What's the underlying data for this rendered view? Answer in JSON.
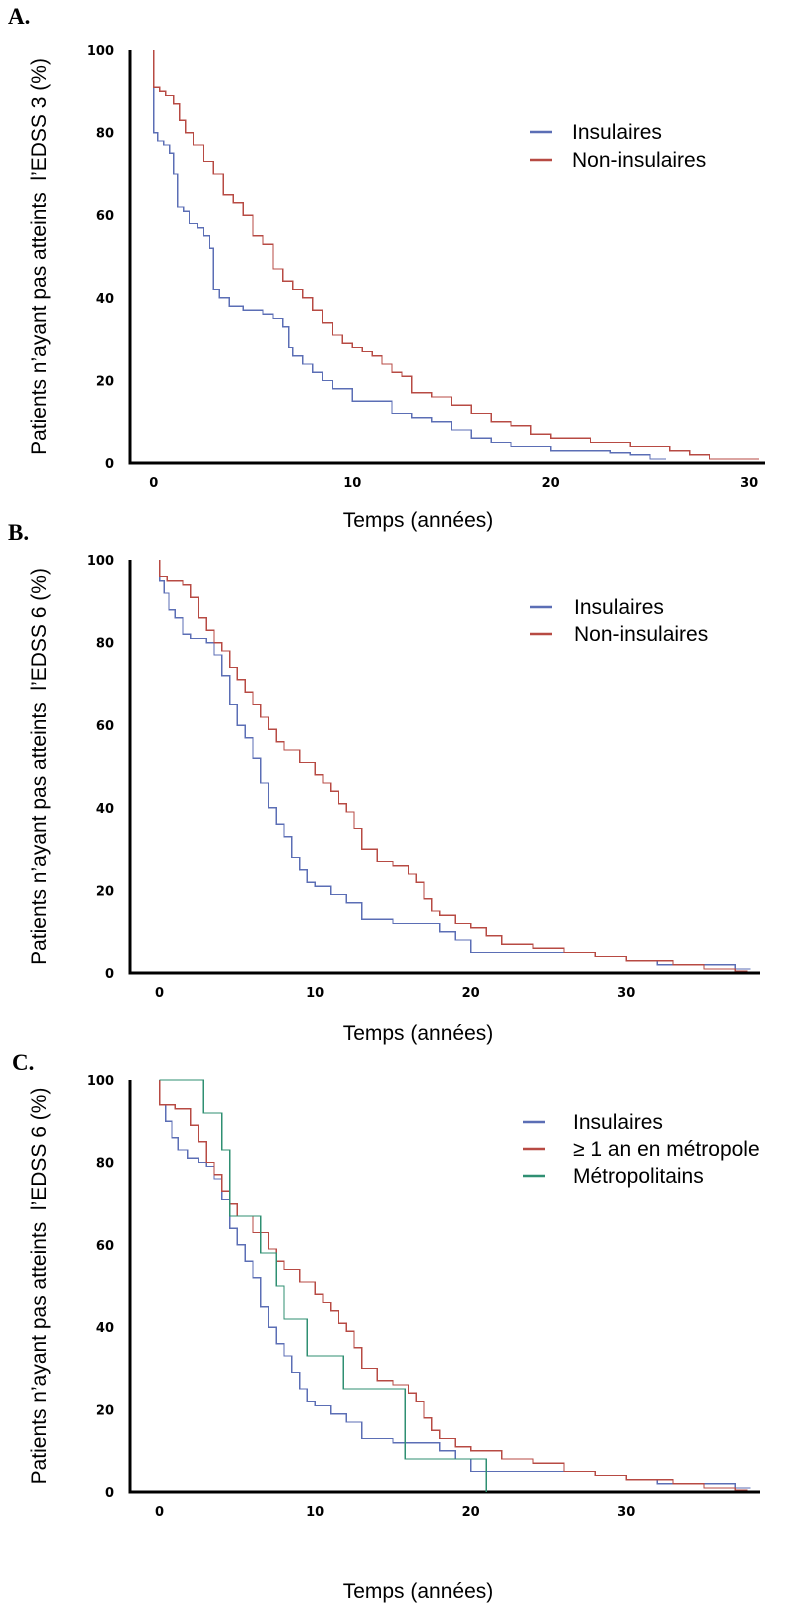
{
  "chart_data": [
    {
      "type": "line",
      "panel": "A.",
      "ylabel": "Patients n’ayant pas atteints  l’EDSS 3 (%)",
      "xlabel": "Temps (années)",
      "xlim": [
        -1.2,
        30.8
      ],
      "ylim": [
        0,
        100
      ],
      "x_ticks": [
        0,
        10,
        20,
        30
      ],
      "y_ticks": [
        0,
        20,
        40,
        60,
        80,
        100
      ],
      "legend_position": "top-right",
      "series": [
        {
          "name": "Insulaires",
          "color": "#5b6eb5",
          "points": [
            [
              0,
              100
            ],
            [
              0,
              80
            ],
            [
              0.2,
              78
            ],
            [
              0.5,
              77
            ],
            [
              0.8,
              75
            ],
            [
              1,
              70
            ],
            [
              1.2,
              62
            ],
            [
              1.5,
              61
            ],
            [
              1.8,
              58
            ],
            [
              2.2,
              57
            ],
            [
              2.5,
              55
            ],
            [
              2.8,
              52
            ],
            [
              3,
              42
            ],
            [
              3.3,
              40
            ],
            [
              3.8,
              38
            ],
            [
              4.5,
              37
            ],
            [
              5,
              37
            ],
            [
              5.5,
              36
            ],
            [
              6,
              35
            ],
            [
              6.5,
              33
            ],
            [
              6.8,
              28
            ],
            [
              7,
              26
            ],
            [
              7.5,
              24
            ],
            [
              8,
              22
            ],
            [
              8.5,
              20
            ],
            [
              9,
              18
            ],
            [
              9.5,
              18
            ],
            [
              10,
              15
            ],
            [
              11,
              15
            ],
            [
              12,
              12
            ],
            [
              13,
              11
            ],
            [
              14,
              10
            ],
            [
              15,
              8
            ],
            [
              16,
              6
            ],
            [
              17,
              5
            ],
            [
              18,
              4
            ],
            [
              20,
              3
            ],
            [
              22,
              3
            ],
            [
              23,
              2.5
            ],
            [
              24,
              2
            ],
            [
              25,
              1
            ],
            [
              25.8,
              1
            ]
          ]
        },
        {
          "name": "Non-insulaires",
          "color": "#b74a43",
          "points": [
            [
              0,
              100
            ],
            [
              0,
              91
            ],
            [
              0.3,
              90
            ],
            [
              0.6,
              89
            ],
            [
              1,
              87
            ],
            [
              1.3,
              83
            ],
            [
              1.6,
              80
            ],
            [
              2,
              77
            ],
            [
              2.5,
              73
            ],
            [
              3,
              70
            ],
            [
              3.5,
              65
            ],
            [
              4,
              63
            ],
            [
              4.5,
              60
            ],
            [
              5,
              55
            ],
            [
              5.5,
              53
            ],
            [
              6,
              47
            ],
            [
              6.5,
              44
            ],
            [
              7,
              42
            ],
            [
              7.5,
              40
            ],
            [
              8,
              37
            ],
            [
              8.5,
              34
            ],
            [
              9,
              31
            ],
            [
              9.5,
              29
            ],
            [
              10,
              28
            ],
            [
              10.5,
              27
            ],
            [
              11,
              26
            ],
            [
              11.5,
              24
            ],
            [
              12,
              22
            ],
            [
              12.5,
              21
            ],
            [
              13,
              17
            ],
            [
              14,
              16
            ],
            [
              15,
              14
            ],
            [
              16,
              12
            ],
            [
              17,
              10
            ],
            [
              18,
              9
            ],
            [
              19,
              7
            ],
            [
              20,
              6
            ],
            [
              22,
              5
            ],
            [
              24,
              4
            ],
            [
              26,
              3
            ],
            [
              27,
              2
            ],
            [
              28,
              1
            ],
            [
              29,
              1
            ],
            [
              30.5,
              1
            ]
          ]
        }
      ]
    },
    {
      "type": "line",
      "panel": "B.",
      "ylabel": "Patients n’ayant pas atteints  l’EDSS 6 (%)",
      "xlabel": "Temps (années)",
      "xlim": [
        -1.9,
        38.6
      ],
      "ylim": [
        0,
        100
      ],
      "x_ticks": [
        0,
        10,
        20,
        30
      ],
      "y_ticks": [
        0,
        20,
        40,
        60,
        80,
        100
      ],
      "legend_position": "top-right",
      "series": [
        {
          "name": "Insulaires",
          "color": "#5b6eb5",
          "points": [
            [
              0,
              100
            ],
            [
              0,
              95
            ],
            [
              0.3,
              92
            ],
            [
              0.6,
              88
            ],
            [
              1,
              86
            ],
            [
              1.5,
              82
            ],
            [
              2,
              81
            ],
            [
              3,
              80
            ],
            [
              3.5,
              77
            ],
            [
              4,
              72
            ],
            [
              4.5,
              65
            ],
            [
              5,
              60
            ],
            [
              5.5,
              57
            ],
            [
              6,
              52
            ],
            [
              6.5,
              46
            ],
            [
              7,
              40
            ],
            [
              7.5,
              36
            ],
            [
              8,
              33
            ],
            [
              8.5,
              28
            ],
            [
              9,
              25
            ],
            [
              9.5,
              22
            ],
            [
              10,
              21
            ],
            [
              11,
              19
            ],
            [
              12,
              17
            ],
            [
              13,
              13
            ],
            [
              14,
              13
            ],
            [
              15,
              12
            ],
            [
              16,
              12
            ],
            [
              17,
              12
            ],
            [
              18,
              10
            ],
            [
              19,
              8
            ],
            [
              20,
              5
            ],
            [
              22,
              5
            ],
            [
              25,
              5
            ],
            [
              28,
              4
            ],
            [
              30,
              3
            ],
            [
              32,
              2
            ],
            [
              35,
              2
            ],
            [
              37,
              1
            ],
            [
              38,
              1
            ]
          ]
        },
        {
          "name": "Non-insulaires",
          "color": "#b74a43",
          "points": [
            [
              0,
              100
            ],
            [
              0,
              96
            ],
            [
              0.5,
              95
            ],
            [
              1.5,
              94
            ],
            [
              2,
              91
            ],
            [
              2.5,
              86
            ],
            [
              3,
              83
            ],
            [
              3.5,
              80
            ],
            [
              4,
              78
            ],
            [
              4.5,
              74
            ],
            [
              5,
              71
            ],
            [
              5.5,
              68
            ],
            [
              6,
              65
            ],
            [
              6.5,
              62
            ],
            [
              7,
              59
            ],
            [
              7.5,
              56
            ],
            [
              8,
              54
            ],
            [
              9,
              51
            ],
            [
              10,
              48
            ],
            [
              10.5,
              46
            ],
            [
              11,
              44
            ],
            [
              11.5,
              41
            ],
            [
              12,
              39
            ],
            [
              12.5,
              35
            ],
            [
              13,
              30
            ],
            [
              14,
              27
            ],
            [
              15,
              26
            ],
            [
              16,
              24
            ],
            [
              16.5,
              22
            ],
            [
              17,
              18
            ],
            [
              17.5,
              15
            ],
            [
              18,
              14
            ],
            [
              19,
              12
            ],
            [
              20,
              11
            ],
            [
              21,
              9
            ],
            [
              22,
              7
            ],
            [
              24,
              6
            ],
            [
              26,
              5
            ],
            [
              28,
              4
            ],
            [
              30,
              3
            ],
            [
              33,
              2
            ],
            [
              35,
              1
            ],
            [
              37,
              0.5
            ],
            [
              37.8,
              0.5
            ]
          ]
        }
      ]
    },
    {
      "type": "line",
      "panel": "C.",
      "ylabel": "Patients n’ayant pas atteints  l’EDSS 6 (%)",
      "xlabel": "Temps (années)",
      "xlim": [
        -1.9,
        38.6
      ],
      "ylim": [
        0,
        100
      ],
      "x_ticks": [
        0,
        10,
        20,
        30
      ],
      "y_ticks": [
        0,
        20,
        40,
        60,
        80,
        100
      ],
      "legend_position": "top-right",
      "series": [
        {
          "name": "Insulaires",
          "color": "#5b6eb5",
          "points": [
            [
              0,
              100
            ],
            [
              0,
              94
            ],
            [
              0.4,
              90
            ],
            [
              0.8,
              86
            ],
            [
              1.2,
              83
            ],
            [
              1.8,
              81
            ],
            [
              2.5,
              80
            ],
            [
              3,
              79
            ],
            [
              3.5,
              76
            ],
            [
              4,
              71
            ],
            [
              4.5,
              64
            ],
            [
              5,
              60
            ],
            [
              5.5,
              56
            ],
            [
              6,
              52
            ],
            [
              6.5,
              45
            ],
            [
              7,
              40
            ],
            [
              7.5,
              36
            ],
            [
              8,
              33
            ],
            [
              8.5,
              29
            ],
            [
              9,
              25
            ],
            [
              9.5,
              22
            ],
            [
              10,
              21
            ],
            [
              11,
              19
            ],
            [
              12,
              17
            ],
            [
              13,
              13
            ],
            [
              14,
              13
            ],
            [
              15,
              12
            ],
            [
              16,
              12
            ],
            [
              17,
              12
            ],
            [
              18,
              10
            ],
            [
              19,
              8
            ],
            [
              20,
              5
            ],
            [
              22,
              5
            ],
            [
              25,
              5
            ],
            [
              28,
              4
            ],
            [
              30,
              3
            ],
            [
              32,
              2
            ],
            [
              35,
              2
            ],
            [
              37,
              1
            ],
            [
              38,
              1
            ]
          ]
        },
        {
          "name": "≥ 1 an en métropole",
          "color": "#b74a43",
          "points": [
            [
              0,
              100
            ],
            [
              0,
              94
            ],
            [
              1,
              93
            ],
            [
              2,
              89
            ],
            [
              2.5,
              85
            ],
            [
              3,
              80
            ],
            [
              3.5,
              77
            ],
            [
              4,
              73
            ],
            [
              4.5,
              70
            ],
            [
              5,
              67
            ],
            [
              6,
              63
            ],
            [
              7,
              59
            ],
            [
              7.5,
              56
            ],
            [
              8,
              54
            ],
            [
              9,
              51
            ],
            [
              10,
              48
            ],
            [
              10.5,
              46
            ],
            [
              11,
              44
            ],
            [
              11.5,
              41
            ],
            [
              12,
              39
            ],
            [
              12.5,
              35
            ],
            [
              13,
              30
            ],
            [
              14,
              27
            ],
            [
              15,
              26
            ],
            [
              16,
              24
            ],
            [
              16.5,
              22
            ],
            [
              17,
              18
            ],
            [
              17.5,
              15
            ],
            [
              18,
              13
            ],
            [
              19,
              11
            ],
            [
              20,
              10
            ],
            [
              22,
              8
            ],
            [
              24,
              7
            ],
            [
              26,
              5
            ],
            [
              28,
              4
            ],
            [
              30,
              3
            ],
            [
              33,
              2
            ],
            [
              35,
              1
            ],
            [
              37,
              0.5
            ],
            [
              37.8,
              0.5
            ]
          ]
        },
        {
          "name": "Métropolitains",
          "color": "#2f8f72",
          "points": [
            [
              0,
              100
            ],
            [
              2.8,
              100
            ],
            [
              2.8,
              92
            ],
            [
              4,
              92
            ],
            [
              4,
              83
            ],
            [
              4.5,
              83
            ],
            [
              4.5,
              67
            ],
            [
              6.5,
              67
            ],
            [
              6.5,
              58
            ],
            [
              7.5,
              58
            ],
            [
              7.5,
              50
            ],
            [
              8,
              50
            ],
            [
              8,
              42
            ],
            [
              9.5,
              42
            ],
            [
              9.5,
              33
            ],
            [
              11.8,
              33
            ],
            [
              11.8,
              25
            ],
            [
              15.8,
              25
            ],
            [
              15.8,
              8
            ],
            [
              21,
              8
            ],
            [
              21,
              0
            ]
          ]
        }
      ]
    }
  ]
}
